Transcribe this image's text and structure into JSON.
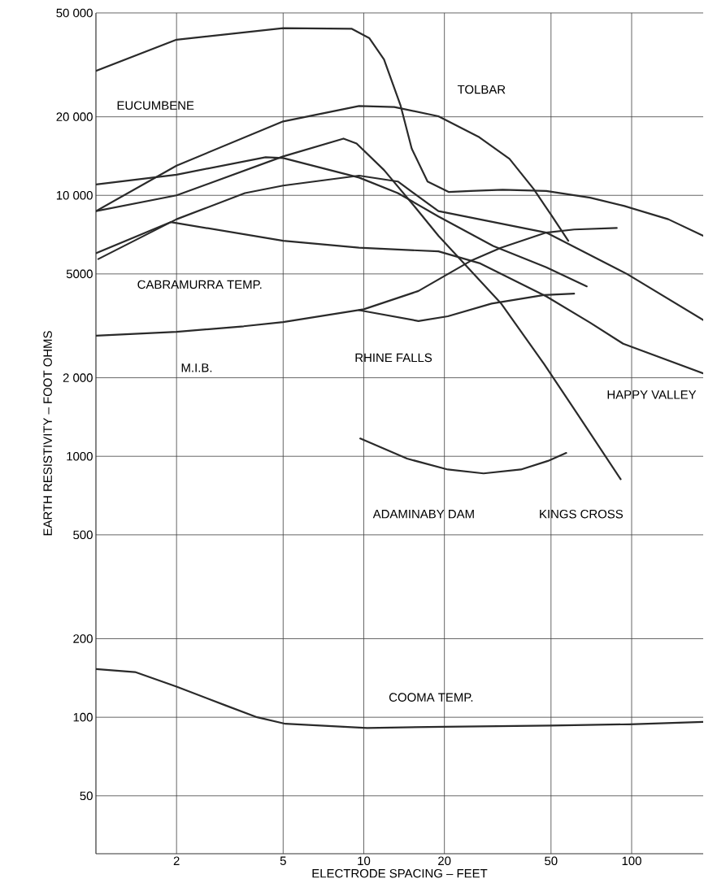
{
  "chart_data": {
    "type": "line",
    "xlabel": "ELECTRODE SPACING – FEET",
    "ylabel": "EARTH RESISTIVITY – FOOT OHMS",
    "log": "xy",
    "grid": true,
    "marker": "none",
    "line_style": "solid",
    "xlim": [
      1,
      185
    ],
    "ylim": [
      30,
      50000
    ],
    "xticks": [
      2,
      5,
      10,
      20,
      50,
      100
    ],
    "yticks": [
      50,
      100,
      200,
      500,
      1000,
      {
        "value": 2000,
        "label": "2 000"
      },
      5000,
      {
        "value": 10000,
        "label": "10 000"
      },
      {
        "value": 20000,
        "label": "20 000"
      },
      {
        "value": 50000,
        "label": "50 000"
      }
    ],
    "series": [
      {
        "color": "#2a2a2a",
        "x": [
          1,
          2,
          5,
          9,
          10.5,
          11.9,
          13.7,
          15.1,
          17.3,
          20.8,
          25,
          33,
          48,
          70,
          94,
          137,
          185
        ],
        "values": [
          30000,
          39500,
          43700,
          43500,
          40000,
          33200,
          22200,
          15100,
          11300,
          10300,
          10400,
          10500,
          10400,
          9800,
          9100,
          8100,
          7000
        ]
      },
      {
        "color": "#2a2a2a",
        "x": [
          1,
          2,
          5,
          9.6,
          13,
          19,
          27,
          35,
          43,
          50.5,
          58
        ],
        "values": [
          8700,
          13000,
          19200,
          22000,
          21800,
          20100,
          16700,
          13800,
          10600,
          8300,
          6700
        ]
      },
      {
        "color": "#2a2a2a",
        "x": [
          1,
          2,
          5,
          8.4,
          9.4,
          11.9,
          15.7,
          19,
          32.5,
          47.2,
          64,
          91
        ],
        "values": [
          8700,
          10000,
          14100,
          16500,
          15800,
          12500,
          8900,
          7000,
          3860,
          2250,
          1410,
          817
        ]
      },
      {
        "color": "#2a2a2a",
        "x": [
          1,
          2,
          4.3,
          5,
          9.6,
          13.4,
          19,
          30.4,
          48,
          68
        ],
        "values": [
          11000,
          12000,
          14000,
          13900,
          11700,
          10200,
          8300,
          6400,
          5300,
          4480
        ]
      },
      {
        "color": "#2a2a2a",
        "x": [
          1.02,
          2,
          3.6,
          5,
          9.6,
          13.4,
          19,
          48,
          96,
          185
        ],
        "values": [
          5700,
          8100,
          10200,
          10900,
          11900,
          11300,
          8700,
          7200,
          5000,
          3330
        ]
      },
      {
        "color": "#2a2a2a",
        "x": [
          1,
          1.9,
          5,
          9.6,
          19,
          27,
          48,
          70,
          93,
          185
        ],
        "values": [
          6000,
          7900,
          6700,
          6300,
          6100,
          5500,
          4100,
          3250,
          2700,
          2080
        ]
      },
      {
        "color": "#2a2a2a",
        "x": [
          1,
          2,
          3.56,
          5,
          10,
          16,
          25,
          32.5,
          48,
          61,
          88
        ],
        "values": [
          2900,
          3000,
          3150,
          3270,
          3660,
          4300,
          5600,
          6300,
          7200,
          7400,
          7500
        ]
      },
      {
        "color": "#2a2a2a",
        "x": [
          9.6,
          16,
          20.6,
          30,
          47,
          61
        ],
        "values": [
          3630,
          3300,
          3440,
          3850,
          4150,
          4200
        ]
      },
      {
        "color": "#2a2a2a",
        "x": [
          9.7,
          14.5,
          20.6,
          28,
          38.6,
          48.7,
          57
        ],
        "values": [
          1170,
          980,
          890,
          860,
          890,
          960,
          1030
        ]
      },
      {
        "color": "#2a2a2a",
        "x": [
          1,
          1.4,
          2,
          3.05,
          4,
          5.1,
          10.3,
          20,
          50,
          98,
          185
        ],
        "values": [
          153,
          149,
          131,
          111,
          100,
          94.4,
          91,
          92,
          93,
          94,
          96
        ]
      }
    ],
    "annotations": [
      "EUCUMBENE",
      "TOLBAR",
      "CABRAMURRA TEMP.",
      "M.I.B.",
      "RHINE FALLS",
      "HAPPY VALLEY",
      "ADAMINABY DAM",
      "KINGS CROSS",
      "COOMA TEMP."
    ]
  }
}
